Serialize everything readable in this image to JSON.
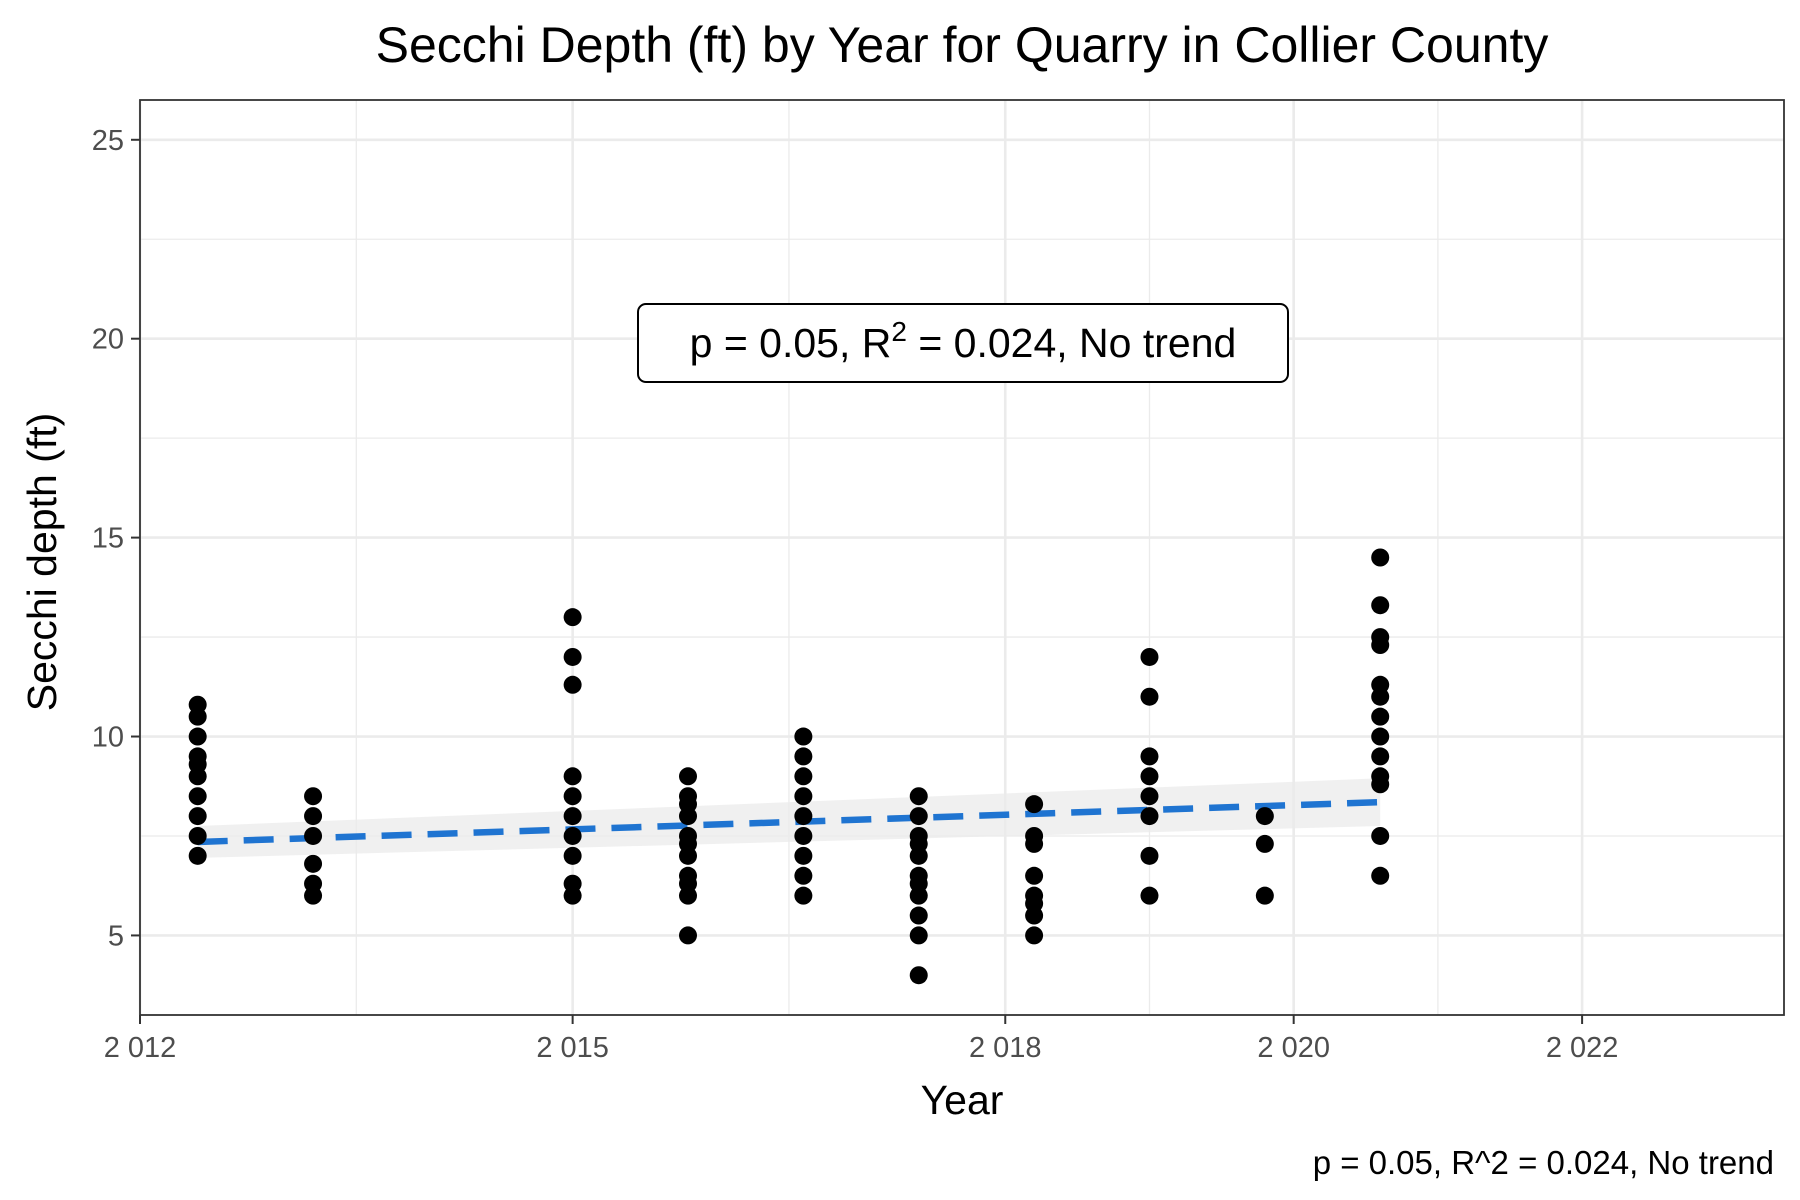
{
  "chart_data": {
    "type": "scatter",
    "title": "Secchi Depth (ft) by Year for Quarry in Collier County",
    "xlabel": "Year",
    "ylabel": "Secchi depth (ft)",
    "xlim": [
      2012,
      2023.4
    ],
    "ylim": [
      3,
      26
    ],
    "x_ticks": [
      2012,
      2015,
      2018,
      2020,
      2022
    ],
    "x_tick_labels": [
      "2 012",
      "2 015",
      "2 018",
      "2 020",
      "2 022"
    ],
    "y_ticks": [
      5,
      10,
      15,
      20,
      25
    ],
    "y_tick_labels": [
      "5",
      "10",
      "15",
      "20",
      "25"
    ],
    "grid": true,
    "series": [
      {
        "type": "scatter",
        "color": "#000000",
        "groups": [
          {
            "x": 2012.4,
            "y": [
              10.8,
              10.5,
              10,
              9.5,
              9.3,
              9,
              8.5,
              8,
              7.5,
              7
            ]
          },
          {
            "x": 2013.2,
            "y": [
              8.5,
              8,
              7.5,
              6.8,
              6.3,
              6
            ]
          },
          {
            "x": 2015.0,
            "y": [
              13,
              12,
              11.3,
              9,
              8.5,
              8,
              7.5,
              7,
              6.3,
              6
            ]
          },
          {
            "x": 2015.8,
            "y": [
              9,
              8.5,
              8.3,
              8,
              7.5,
              7.3,
              7,
              6.5,
              6.3,
              6,
              5
            ]
          },
          {
            "x": 2016.6,
            "y": [
              10,
              9.5,
              9,
              8.5,
              8,
              7.5,
              7,
              6.5,
              6
            ]
          },
          {
            "x": 2017.4,
            "y": [
              8.5,
              8,
              7.5,
              7.3,
              7,
              6.5,
              6.3,
              6,
              5.5,
              5,
              4
            ]
          },
          {
            "x": 2018.2,
            "y": [
              8.3,
              7.5,
              7.3,
              6.5,
              6,
              5.8,
              5.5,
              5
            ]
          },
          {
            "x": 2019.0,
            "y": [
              12,
              11,
              9.5,
              9,
              8.5,
              8,
              7,
              6
            ]
          },
          {
            "x": 2019.8,
            "y": [
              8,
              7.3,
              6
            ]
          },
          {
            "x": 2020.6,
            "y": [
              14.5,
              13.3,
              12.5,
              12.3,
              11.3,
              11,
              10.5,
              10,
              9.5,
              9,
              8.8,
              7.5,
              6.5
            ]
          }
        ]
      },
      {
        "type": "line",
        "style": "dashed",
        "color": "#1f74d1",
        "x": [
          2012.4,
          2020.6
        ],
        "y": [
          7.35,
          8.35
        ]
      },
      {
        "type": "band",
        "color": "#e6e6e6",
        "x": [
          2012.4,
          2020.6
        ],
        "lower": [
          6.95,
          7.75
        ],
        "upper": [
          7.75,
          8.95
        ]
      }
    ],
    "annotation": {
      "text_prefix": "p = 0.05, R",
      "superscript": "2",
      "text_suffix": " = 0.024, No trend",
      "anchor_x": 2017.4,
      "anchor_y": 19.5
    },
    "caption": "p = 0.05, R^2 = 0.024, No trend"
  }
}
